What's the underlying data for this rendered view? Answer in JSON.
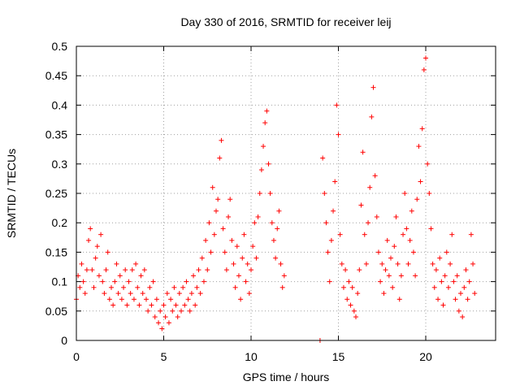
{
  "chart_data": {
    "type": "scatter",
    "title": "Day 330 of 2016, SRMTID for receiver leij",
    "xlabel": "GPS time / hours",
    "ylabel": "SRMTID / TECUs",
    "xlim": [
      0,
      24
    ],
    "ylim": [
      0,
      0.5
    ],
    "x_ticks": [
      0,
      5,
      10,
      15,
      20
    ],
    "x_tick_labels": [
      "0",
      "5",
      "10",
      "15",
      "20"
    ],
    "y_ticks": [
      0,
      0.05,
      0.1,
      0.15,
      0.2,
      0.25,
      0.3,
      0.35,
      0.4,
      0.45,
      0.5
    ],
    "y_tick_labels": [
      "0",
      "0.05",
      "0.1",
      "0.15",
      "0.2",
      "0.25",
      "0.3",
      "0.35",
      "0.4",
      "0.45",
      "0.5"
    ],
    "grid": true,
    "marker": "+",
    "color": "#ff0000",
    "series": [
      {
        "name": "SRMTID",
        "points": [
          [
            0.0,
            0.07
          ],
          [
            0.1,
            0.11
          ],
          [
            0.2,
            0.09
          ],
          [
            0.3,
            0.13
          ],
          [
            0.4,
            0.1
          ],
          [
            0.5,
            0.08
          ],
          [
            0.6,
            0.12
          ],
          [
            0.7,
            0.17
          ],
          [
            0.8,
            0.19
          ],
          [
            0.9,
            0.12
          ],
          [
            1.0,
            0.09
          ],
          [
            1.1,
            0.14
          ],
          [
            1.2,
            0.16
          ],
          [
            1.3,
            0.11
          ],
          [
            1.4,
            0.18
          ],
          [
            1.5,
            0.1
          ],
          [
            1.6,
            0.08
          ],
          [
            1.7,
            0.12
          ],
          [
            1.8,
            0.15
          ],
          [
            1.9,
            0.07
          ],
          [
            2.0,
            0.09
          ],
          [
            2.1,
            0.06
          ],
          [
            2.2,
            0.1
          ],
          [
            2.3,
            0.13
          ],
          [
            2.4,
            0.08
          ],
          [
            2.5,
            0.11
          ],
          [
            2.6,
            0.07
          ],
          [
            2.7,
            0.09
          ],
          [
            2.8,
            0.12
          ],
          [
            2.9,
            0.06
          ],
          [
            3.0,
            0.1
          ],
          [
            3.1,
            0.08
          ],
          [
            3.2,
            0.12
          ],
          [
            3.3,
            0.07
          ],
          [
            3.4,
            0.13
          ],
          [
            3.5,
            0.09
          ],
          [
            3.6,
            0.06
          ],
          [
            3.7,
            0.11
          ],
          [
            3.8,
            0.08
          ],
          [
            3.9,
            0.12
          ],
          [
            4.0,
            0.07
          ],
          [
            4.1,
            0.05
          ],
          [
            4.2,
            0.09
          ],
          [
            4.3,
            0.06
          ],
          [
            4.4,
            0.1
          ],
          [
            4.5,
            0.04
          ],
          [
            4.6,
            0.07
          ],
          [
            4.7,
            0.03
          ],
          [
            4.8,
            0.05
          ],
          [
            4.9,
            0.02
          ],
          [
            5.0,
            0.06
          ],
          [
            5.1,
            0.04
          ],
          [
            5.2,
            0.08
          ],
          [
            5.3,
            0.03
          ],
          [
            5.4,
            0.07
          ],
          [
            5.5,
            0.05
          ],
          [
            5.6,
            0.09
          ],
          [
            5.7,
            0.06
          ],
          [
            5.8,
            0.04
          ],
          [
            5.9,
            0.08
          ],
          [
            6.0,
            0.05
          ],
          [
            6.1,
            0.09
          ],
          [
            6.2,
            0.06
          ],
          [
            6.3,
            0.1
          ],
          [
            6.4,
            0.07
          ],
          [
            6.5,
            0.05
          ],
          [
            6.6,
            0.08
          ],
          [
            6.7,
            0.11
          ],
          [
            6.8,
            0.06
          ],
          [
            6.9,
            0.09
          ],
          [
            7.0,
            0.12
          ],
          [
            7.1,
            0.08
          ],
          [
            7.2,
            0.14
          ],
          [
            7.3,
            0.1
          ],
          [
            7.4,
            0.17
          ],
          [
            7.5,
            0.12
          ],
          [
            7.6,
            0.2
          ],
          [
            7.7,
            0.15
          ],
          [
            7.8,
            0.26
          ],
          [
            7.9,
            0.18
          ],
          [
            8.0,
            0.22
          ],
          [
            8.1,
            0.24
          ],
          [
            8.2,
            0.31
          ],
          [
            8.3,
            0.34
          ],
          [
            8.4,
            0.19
          ],
          [
            8.5,
            0.15
          ],
          [
            8.6,
            0.12
          ],
          [
            8.7,
            0.21
          ],
          [
            8.8,
            0.24
          ],
          [
            8.9,
            0.17
          ],
          [
            9.0,
            0.13
          ],
          [
            9.1,
            0.09
          ],
          [
            9.2,
            0.16
          ],
          [
            9.3,
            0.11
          ],
          [
            9.4,
            0.07
          ],
          [
            9.5,
            0.14
          ],
          [
            9.6,
            0.18
          ],
          [
            9.7,
            0.1
          ],
          [
            9.8,
            0.13
          ],
          [
            9.9,
            0.08
          ],
          [
            10.0,
            0.12
          ],
          [
            10.1,
            0.16
          ],
          [
            10.2,
            0.2
          ],
          [
            10.3,
            0.14
          ],
          [
            10.4,
            0.21
          ],
          [
            10.5,
            0.25
          ],
          [
            10.6,
            0.29
          ],
          [
            10.7,
            0.33
          ],
          [
            10.8,
            0.37
          ],
          [
            10.9,
            0.39
          ],
          [
            11.0,
            0.3
          ],
          [
            11.1,
            0.25
          ],
          [
            11.2,
            0.2
          ],
          [
            11.3,
            0.17
          ],
          [
            11.4,
            0.14
          ],
          [
            11.5,
            0.19
          ],
          [
            11.6,
            0.22
          ],
          [
            11.7,
            0.13
          ],
          [
            11.8,
            0.09
          ],
          [
            11.9,
            0.11
          ],
          [
            13.95,
            0.0
          ],
          [
            14.1,
            0.31
          ],
          [
            14.2,
            0.25
          ],
          [
            14.3,
            0.2
          ],
          [
            14.4,
            0.15
          ],
          [
            14.5,
            0.1
          ],
          [
            14.6,
            0.17
          ],
          [
            14.7,
            0.22
          ],
          [
            14.8,
            0.27
          ],
          [
            14.9,
            0.4
          ],
          [
            15.0,
            0.35
          ],
          [
            15.1,
            0.18
          ],
          [
            15.2,
            0.13
          ],
          [
            15.3,
            0.09
          ],
          [
            15.4,
            0.12
          ],
          [
            15.5,
            0.07
          ],
          [
            15.6,
            0.1
          ],
          [
            15.7,
            0.06
          ],
          [
            15.8,
            0.09
          ],
          [
            15.9,
            0.05
          ],
          [
            16.0,
            0.04
          ],
          [
            16.1,
            0.08
          ],
          [
            16.2,
            0.12
          ],
          [
            16.3,
            0.23
          ],
          [
            16.4,
            0.32
          ],
          [
            16.5,
            0.18
          ],
          [
            16.6,
            0.13
          ],
          [
            16.7,
            0.2
          ],
          [
            16.8,
            0.26
          ],
          [
            16.9,
            0.38
          ],
          [
            17.0,
            0.43
          ],
          [
            17.1,
            0.28
          ],
          [
            17.2,
            0.21
          ],
          [
            17.3,
            0.15
          ],
          [
            17.4,
            0.1
          ],
          [
            17.5,
            0.13
          ],
          [
            17.6,
            0.08
          ],
          [
            17.7,
            0.12
          ],
          [
            17.8,
            0.17
          ],
          [
            17.9,
            0.11
          ],
          [
            18.0,
            0.14
          ],
          [
            18.1,
            0.09
          ],
          [
            18.2,
            0.16
          ],
          [
            18.3,
            0.21
          ],
          [
            18.4,
            0.13
          ],
          [
            18.5,
            0.07
          ],
          [
            18.6,
            0.11
          ],
          [
            18.7,
            0.18
          ],
          [
            18.8,
            0.25
          ],
          [
            18.9,
            0.19
          ],
          [
            19.0,
            0.13
          ],
          [
            19.1,
            0.17
          ],
          [
            19.2,
            0.22
          ],
          [
            19.3,
            0.15
          ],
          [
            19.4,
            0.11
          ],
          [
            19.5,
            0.24
          ],
          [
            19.6,
            0.33
          ],
          [
            19.7,
            0.27
          ],
          [
            19.8,
            0.36
          ],
          [
            19.9,
            0.46
          ],
          [
            20.0,
            0.48
          ],
          [
            20.1,
            0.3
          ],
          [
            20.2,
            0.25
          ],
          [
            20.3,
            0.19
          ],
          [
            20.4,
            0.13
          ],
          [
            20.5,
            0.09
          ],
          [
            20.6,
            0.12
          ],
          [
            20.7,
            0.07
          ],
          [
            20.8,
            0.14
          ],
          [
            20.9,
            0.1
          ],
          [
            21.0,
            0.06
          ],
          [
            21.1,
            0.11
          ],
          [
            21.2,
            0.15
          ],
          [
            21.3,
            0.09
          ],
          [
            21.4,
            0.13
          ],
          [
            21.5,
            0.18
          ],
          [
            21.6,
            0.1
          ],
          [
            21.7,
            0.07
          ],
          [
            21.8,
            0.11
          ],
          [
            21.9,
            0.05
          ],
          [
            22.0,
            0.08
          ],
          [
            22.1,
            0.04
          ],
          [
            22.2,
            0.09
          ],
          [
            22.3,
            0.12
          ],
          [
            22.4,
            0.07
          ],
          [
            22.5,
            0.1
          ],
          [
            22.6,
            0.18
          ],
          [
            22.7,
            0.13
          ],
          [
            22.8,
            0.08
          ]
        ]
      }
    ]
  }
}
